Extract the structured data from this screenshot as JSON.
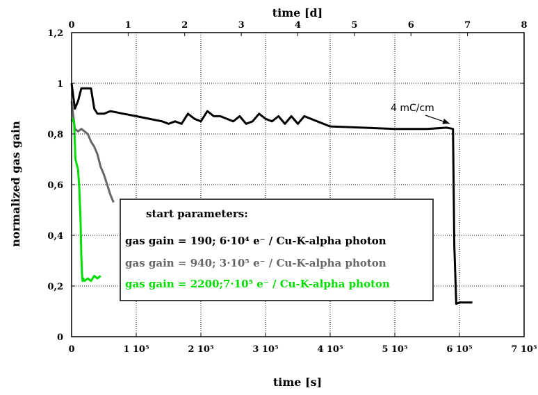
{
  "chart_data": {
    "type": "line",
    "xlabel": "time [s]",
    "x2label": "time [d]",
    "ylabel": "normalized gas gain",
    "xlim": [
      0,
      700000
    ],
    "ylim": [
      0,
      1.2
    ],
    "x2lim": [
      0,
      8
    ],
    "grid": true,
    "x_ticks": [
      "0",
      "1 10⁵",
      "2 10⁵",
      "3 10⁵",
      "4 10⁵",
      "5 10⁵",
      "6 10⁵",
      "7 10⁵"
    ],
    "x_tick_values": [
      0,
      100000,
      200000,
      300000,
      400000,
      500000,
      600000,
      700000
    ],
    "x2_ticks": [
      "0",
      "1",
      "2",
      "3",
      "4",
      "5",
      "6",
      "7",
      "8"
    ],
    "y_ticks": [
      "0",
      "0,2",
      "0,4",
      "0,6",
      "0,8",
      "1",
      "1,2"
    ],
    "y_tick_values": [
      0,
      0.2,
      0.4,
      0.6,
      0.8,
      1.0,
      1.2
    ],
    "legend_title": "start parameters:",
    "legend_placement": "center",
    "annotation": {
      "text": "4 mC/cm",
      "x": 585000,
      "y": 0.83
    },
    "series": [
      {
        "name": "gas gain = 190; 6·10⁴ e⁻ / Cu-K-alpha photon",
        "color": "#000000",
        "x": [
          0,
          5000,
          10000,
          15000,
          20000,
          30000,
          35000,
          40000,
          50000,
          60000,
          80000,
          100000,
          120000,
          140000,
          150000,
          160000,
          170000,
          180000,
          190000,
          200000,
          210000,
          220000,
          230000,
          240000,
          250000,
          260000,
          270000,
          280000,
          290000,
          300000,
          310000,
          320000,
          330000,
          340000,
          350000,
          360000,
          380000,
          400000,
          450000,
          500000,
          550000,
          580000,
          590000,
          592000,
          595000,
          600000,
          610000,
          620000
        ],
        "y": [
          1.0,
          0.9,
          0.93,
          0.98,
          0.98,
          0.98,
          0.9,
          0.88,
          0.88,
          0.89,
          0.88,
          0.87,
          0.86,
          0.85,
          0.84,
          0.85,
          0.84,
          0.88,
          0.86,
          0.85,
          0.89,
          0.87,
          0.87,
          0.86,
          0.85,
          0.87,
          0.84,
          0.85,
          0.88,
          0.86,
          0.85,
          0.87,
          0.84,
          0.87,
          0.84,
          0.87,
          0.85,
          0.83,
          0.825,
          0.82,
          0.82,
          0.825,
          0.82,
          0.36,
          0.13,
          0.135,
          0.135,
          0.135
        ]
      },
      {
        "name": "gas gain = 940; 3·10⁵ e⁻ / Cu-K-alpha photon",
        "color": "#666666",
        "x": [
          0,
          5000,
          10000,
          15000,
          20000,
          25000,
          30000,
          35000,
          40000,
          45000,
          50000,
          55000,
          60000,
          65000
        ],
        "y": [
          0.93,
          0.82,
          0.81,
          0.82,
          0.81,
          0.8,
          0.77,
          0.75,
          0.72,
          0.67,
          0.64,
          0.6,
          0.56,
          0.53
        ]
      },
      {
        "name": "gas gain = 2200;7·10⁵ e⁻ / Cu-K-alpha photon",
        "color": "#00dd00",
        "x": [
          0,
          2000,
          4000,
          6000,
          8000,
          10000,
          12000,
          14000,
          15000,
          16000,
          17000,
          18000,
          20000,
          25000,
          30000,
          35000,
          40000,
          45000
        ],
        "y": [
          0.85,
          0.86,
          0.84,
          0.7,
          0.68,
          0.66,
          0.58,
          0.45,
          0.32,
          0.25,
          0.22,
          0.23,
          0.22,
          0.23,
          0.22,
          0.24,
          0.23,
          0.24
        ]
      }
    ]
  }
}
